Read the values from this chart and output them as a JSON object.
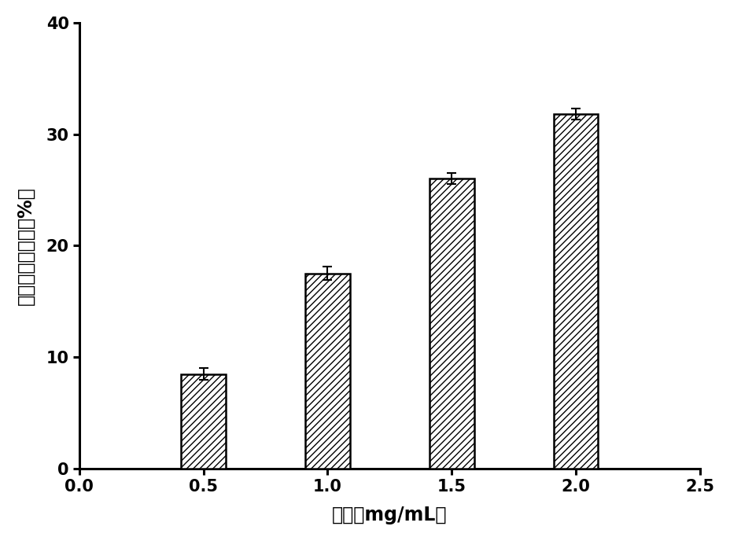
{
  "categories": [
    0.5,
    1.0,
    1.5,
    2.0
  ],
  "values": [
    8.5,
    17.5,
    26.0,
    31.8
  ],
  "errors": [
    0.5,
    0.6,
    0.5,
    0.5
  ],
  "bar_color": "#ffffff",
  "bar_edge_color": "#000000",
  "hatch": "////",
  "xlabel": "浓度（mg/mL）",
  "ylabel": "羟自由基清除率（%）",
  "xlim": [
    0.0,
    2.5
  ],
  "ylim": [
    0,
    40
  ],
  "yticks": [
    0,
    10,
    20,
    30,
    40
  ],
  "xticks": [
    0.0,
    0.5,
    1.0,
    1.5,
    2.0,
    2.5
  ],
  "bar_width": 0.18,
  "background_color": "#ffffff",
  "axis_linewidth": 2.2,
  "tick_fontsize": 15,
  "label_fontsize": 17
}
